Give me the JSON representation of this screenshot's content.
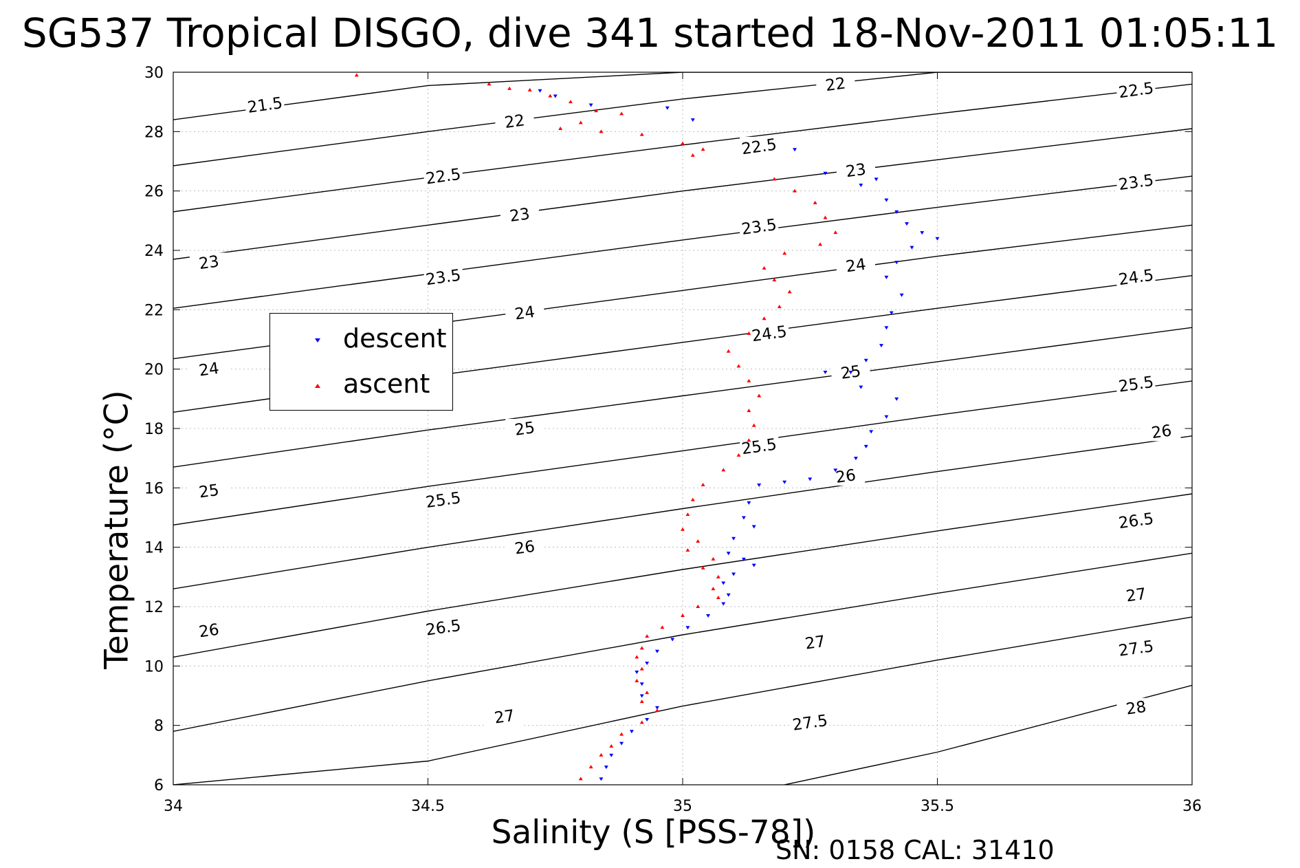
{
  "title": "SG537 Tropical DISGO, dive 341 started 18-Nov-2011 01:05:11",
  "footer": {
    "sn_cal": "SN: 0158  CAL: 31410"
  },
  "colors": {
    "descent": "#0000ff",
    "ascent": "#ff0000",
    "contour": "#000000",
    "grid": "#bbbbbb"
  },
  "chart_data": {
    "type": "scatter",
    "title": "SG537 Tropical DISGO, dive 341 started 18-Nov-2011 01:05:11",
    "xlabel": "Salinity (S [PSS-78])",
    "ylabel": "Temperature (°C)",
    "xlim": [
      34,
      36
    ],
    "ylim": [
      6,
      30
    ],
    "xticks": [
      34,
      34.5,
      35,
      35.5,
      36
    ],
    "xtick_labels": [
      "34",
      "34.5",
      "35",
      "35.5",
      "36"
    ],
    "yticks": [
      6,
      8,
      10,
      12,
      14,
      16,
      18,
      20,
      22,
      24,
      26,
      28,
      30
    ],
    "ytick_labels": [
      "6",
      "8",
      "10",
      "12",
      "14",
      "16",
      "18",
      "20",
      "22",
      "24",
      "26",
      "28",
      "30"
    ],
    "grid": true,
    "legend": {
      "placement": "left",
      "entries": [
        "descent",
        "ascent"
      ]
    },
    "series": [
      {
        "name": "descent",
        "marker": "down-triangle",
        "points": [
          [
            34.72,
            29.38
          ],
          [
            34.75,
            29.2
          ],
          [
            34.82,
            28.9
          ],
          [
            34.97,
            28.8
          ],
          [
            35.02,
            28.4
          ],
          [
            35.22,
            27.4
          ],
          [
            35.28,
            26.6
          ],
          [
            35.35,
            26.2
          ],
          [
            35.38,
            26.4
          ],
          [
            35.4,
            25.7
          ],
          [
            35.42,
            25.3
          ],
          [
            35.44,
            24.9
          ],
          [
            35.47,
            24.6
          ],
          [
            35.5,
            24.4
          ],
          [
            35.45,
            24.1
          ],
          [
            35.42,
            23.6
          ],
          [
            35.4,
            23.1
          ],
          [
            35.43,
            22.5
          ],
          [
            35.41,
            21.9
          ],
          [
            35.4,
            21.4
          ],
          [
            35.39,
            20.8
          ],
          [
            35.36,
            20.3
          ],
          [
            35.33,
            19.9
          ],
          [
            35.28,
            19.9
          ],
          [
            35.35,
            19.4
          ],
          [
            35.42,
            19.0
          ],
          [
            35.4,
            18.4
          ],
          [
            35.37,
            17.9
          ],
          [
            35.36,
            17.4
          ],
          [
            35.34,
            17.0
          ],
          [
            35.3,
            16.6
          ],
          [
            35.25,
            16.3
          ],
          [
            35.2,
            16.2
          ],
          [
            35.15,
            16.1
          ],
          [
            35.13,
            15.5
          ],
          [
            35.12,
            15.0
          ],
          [
            35.14,
            14.7
          ],
          [
            35.1,
            14.3
          ],
          [
            35.09,
            13.8
          ],
          [
            35.12,
            13.6
          ],
          [
            35.14,
            13.4
          ],
          [
            35.1,
            13.1
          ],
          [
            35.08,
            12.8
          ],
          [
            35.09,
            12.4
          ],
          [
            35.08,
            12.1
          ],
          [
            35.05,
            11.7
          ],
          [
            35.01,
            11.3
          ],
          [
            34.98,
            10.9
          ],
          [
            34.95,
            10.5
          ],
          [
            34.93,
            10.1
          ],
          [
            34.91,
            9.8
          ],
          [
            34.92,
            9.4
          ],
          [
            34.92,
            9.0
          ],
          [
            34.95,
            8.6
          ],
          [
            34.93,
            8.2
          ],
          [
            34.9,
            7.8
          ],
          [
            34.88,
            7.4
          ],
          [
            34.86,
            7.0
          ],
          [
            34.85,
            6.6
          ],
          [
            34.84,
            6.2
          ]
        ]
      },
      {
        "name": "ascent",
        "marker": "up-triangle",
        "points": [
          [
            34.36,
            29.9
          ],
          [
            34.62,
            29.6
          ],
          [
            34.66,
            29.45
          ],
          [
            34.7,
            29.4
          ],
          [
            34.74,
            29.2
          ],
          [
            34.78,
            29.0
          ],
          [
            34.83,
            28.7
          ],
          [
            34.88,
            28.6
          ],
          [
            34.8,
            28.3
          ],
          [
            34.76,
            28.1
          ],
          [
            34.84,
            28.0
          ],
          [
            34.92,
            27.9
          ],
          [
            35.0,
            27.6
          ],
          [
            35.04,
            27.4
          ],
          [
            35.02,
            27.2
          ],
          [
            35.18,
            26.4
          ],
          [
            35.22,
            26.0
          ],
          [
            35.26,
            25.6
          ],
          [
            35.28,
            25.1
          ],
          [
            35.3,
            24.6
          ],
          [
            35.27,
            24.2
          ],
          [
            35.2,
            23.9
          ],
          [
            35.16,
            23.4
          ],
          [
            35.18,
            23.0
          ],
          [
            35.21,
            22.6
          ],
          [
            35.19,
            22.1
          ],
          [
            35.16,
            21.7
          ],
          [
            35.13,
            21.2
          ],
          [
            35.09,
            20.6
          ],
          [
            35.11,
            20.1
          ],
          [
            35.13,
            19.6
          ],
          [
            35.15,
            19.1
          ],
          [
            35.13,
            18.6
          ],
          [
            35.14,
            18.1
          ],
          [
            35.13,
            17.6
          ],
          [
            35.11,
            17.1
          ],
          [
            35.08,
            16.6
          ],
          [
            35.04,
            16.1
          ],
          [
            35.02,
            15.6
          ],
          [
            35.01,
            15.1
          ],
          [
            35.0,
            14.6
          ],
          [
            35.03,
            14.2
          ],
          [
            35.01,
            13.9
          ],
          [
            35.06,
            13.6
          ],
          [
            35.04,
            13.3
          ],
          [
            35.07,
            13.0
          ],
          [
            35.06,
            12.6
          ],
          [
            35.07,
            12.3
          ],
          [
            35.03,
            12.0
          ],
          [
            35.0,
            11.7
          ],
          [
            34.96,
            11.3
          ],
          [
            34.93,
            11.0
          ],
          [
            34.92,
            10.6
          ],
          [
            34.91,
            10.3
          ],
          [
            34.92,
            9.9
          ],
          [
            34.91,
            9.5
          ],
          [
            34.93,
            9.1
          ],
          [
            34.92,
            8.8
          ],
          [
            34.95,
            8.5
          ],
          [
            34.92,
            8.1
          ],
          [
            34.88,
            7.7
          ],
          [
            34.86,
            7.3
          ],
          [
            34.84,
            7.0
          ],
          [
            34.82,
            6.6
          ],
          [
            34.8,
            6.2
          ]
        ]
      }
    ],
    "contours": [
      {
        "x": [
          34.0,
          34.5,
          35.0,
          35.5,
          36.0
        ],
        "y": [
          28.4,
          29.55,
          30.0,
          30.0,
          30.0
        ],
        "label": "21.5",
        "label_xy": [
          34.18,
          28.9
        ]
      },
      {
        "x": [
          34.0,
          34.5,
          35.0,
          35.5,
          36.0
        ],
        "y": [
          26.85,
          28.0,
          29.1,
          30.0,
          30.0
        ],
        "label": "22",
        "label_xy": [
          34.67,
          28.35
        ]
      },
      {
        "x": [
          34.0,
          34.5,
          35.0,
          35.5,
          36.0
        ],
        "y": [
          25.3,
          26.45,
          27.55,
          28.6,
          29.6
        ],
        "label": "22.5",
        "label_xy": [
          34.53,
          26.5
        ]
      },
      {
        "x": [
          34.0,
          34.5,
          35.0,
          35.5,
          36.0
        ],
        "y": [
          23.7,
          24.85,
          26.0,
          27.05,
          28.1
        ],
        "label": "23",
        "label_xy": [
          34.68,
          25.2
        ]
      },
      {
        "x": [
          34.0,
          34.5,
          35.0,
          35.5,
          36.0
        ],
        "y": [
          22.05,
          23.2,
          24.35,
          25.45,
          26.5
        ],
        "label": "23.5",
        "label_xy": [
          34.53,
          23.1
        ]
      },
      {
        "x": [
          34.0,
          34.5,
          35.0,
          35.5,
          36.0
        ],
        "y": [
          20.35,
          21.5,
          22.65,
          23.8,
          24.85
        ],
        "label": "24",
        "label_xy": [
          34.69,
          21.9
        ]
      },
      {
        "x": [
          34.0,
          34.5,
          35.0,
          35.5,
          36.0
        ],
        "y": [
          18.55,
          19.75,
          20.9,
          22.05,
          23.15
        ],
        "label": "24.5",
        "label_xy": [
          35.17,
          21.2
        ]
      },
      {
        "x": [
          34.0,
          34.5,
          35.0,
          35.5,
          36.0
        ],
        "y": [
          16.7,
          17.95,
          19.1,
          20.25,
          21.4
        ],
        "label": "25",
        "label_xy": [
          34.69,
          18.0
        ]
      },
      {
        "x": [
          34.0,
          34.5,
          35.0,
          35.5,
          36.0
        ],
        "y": [
          14.75,
          16.05,
          17.25,
          18.45,
          19.6
        ],
        "label": "25.5",
        "label_xy": [
          34.53,
          15.6
        ]
      },
      {
        "x": [
          34.0,
          34.5,
          35.0,
          35.5,
          36.0
        ],
        "y": [
          12.6,
          14.0,
          15.3,
          16.55,
          17.75
        ],
        "label": "26",
        "label_xy": [
          34.69,
          14.0
        ]
      },
      {
        "x": [
          34.0,
          34.5,
          35.0,
          35.5,
          36.0
        ],
        "y": [
          10.3,
          11.85,
          13.25,
          14.55,
          15.8
        ],
        "label": "26.5",
        "label_xy": [
          34.53,
          11.3
        ]
      },
      {
        "x": [
          34.0,
          34.5,
          35.0,
          35.5,
          36.0
        ],
        "y": [
          7.8,
          9.5,
          11.05,
          12.45,
          13.8
        ],
        "label": "27",
        "label_xy": [
          34.65,
          8.3
        ]
      },
      {
        "x": [
          34.0,
          34.5,
          35.0,
          35.5,
          36.0
        ],
        "y": [
          6.0,
          6.8,
          8.65,
          10.2,
          11.65
        ],
        "label": "27.5",
        "label_xy": [
          35.25,
          8.1
        ]
      },
      {
        "x": [
          35.2,
          35.5,
          36.0
        ],
        "y": [
          6.0,
          7.1,
          9.35
        ],
        "label": "28",
        "label_xy": [
          35.89,
          8.6
        ]
      }
    ],
    "extra_contour_labels": [
      {
        "label": "22",
        "xy": [
          35.3,
          29.6
        ]
      },
      {
        "label": "22.5",
        "xy": [
          35.89,
          29.4
        ]
      },
      {
        "label": "22.5",
        "xy": [
          35.15,
          27.5
        ]
      },
      {
        "label": "23",
        "xy": [
          35.34,
          26.7
        ]
      },
      {
        "label": "23.5",
        "xy": [
          35.89,
          26.3
        ]
      },
      {
        "label": "23.5",
        "xy": [
          35.15,
          24.8
        ]
      },
      {
        "label": "24",
        "xy": [
          35.34,
          23.5
        ]
      },
      {
        "label": "24.5",
        "xy": [
          35.89,
          23.1
        ]
      },
      {
        "label": "25",
        "xy": [
          35.33,
          19.9
        ]
      },
      {
        "label": "25.5",
        "xy": [
          35.89,
          19.5
        ]
      },
      {
        "label": "25.5",
        "xy": [
          35.15,
          17.4
        ]
      },
      {
        "label": "26",
        "xy": [
          35.32,
          16.4
        ]
      },
      {
        "label": "26",
        "xy": [
          35.94,
          17.9
        ]
      },
      {
        "label": "26.5",
        "xy": [
          35.89,
          14.9
        ]
      },
      {
        "label": "27",
        "xy": [
          35.26,
          10.8
        ]
      },
      {
        "label": "27",
        "xy": [
          35.89,
          12.4
        ]
      },
      {
        "label": "27.5",
        "xy": [
          35.89,
          10.6
        ]
      },
      {
        "label": "23",
        "xy": [
          34.07,
          23.6
        ]
      },
      {
        "label": "24",
        "xy": [
          34.07,
          20.0
        ]
      },
      {
        "label": "25",
        "xy": [
          34.07,
          15.9
        ]
      },
      {
        "label": "26",
        "xy": [
          34.07,
          11.2
        ]
      }
    ]
  }
}
